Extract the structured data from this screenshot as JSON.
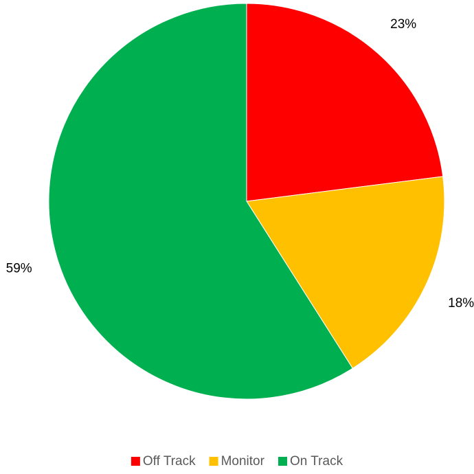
{
  "chart_data": {
    "type": "pie",
    "title": "",
    "series": [
      {
        "categories": [
          "Off Track",
          "Monitor",
          "On Track"
        ],
        "values": [
          23,
          18,
          59
        ],
        "labels": [
          "23%",
          "18%",
          "59%"
        ],
        "colors": [
          "#FF0000",
          "#FFC000",
          "#00B050"
        ]
      }
    ],
    "start_angle_deg": 0,
    "direction": "clockwise",
    "legend_position": "bottom"
  }
}
